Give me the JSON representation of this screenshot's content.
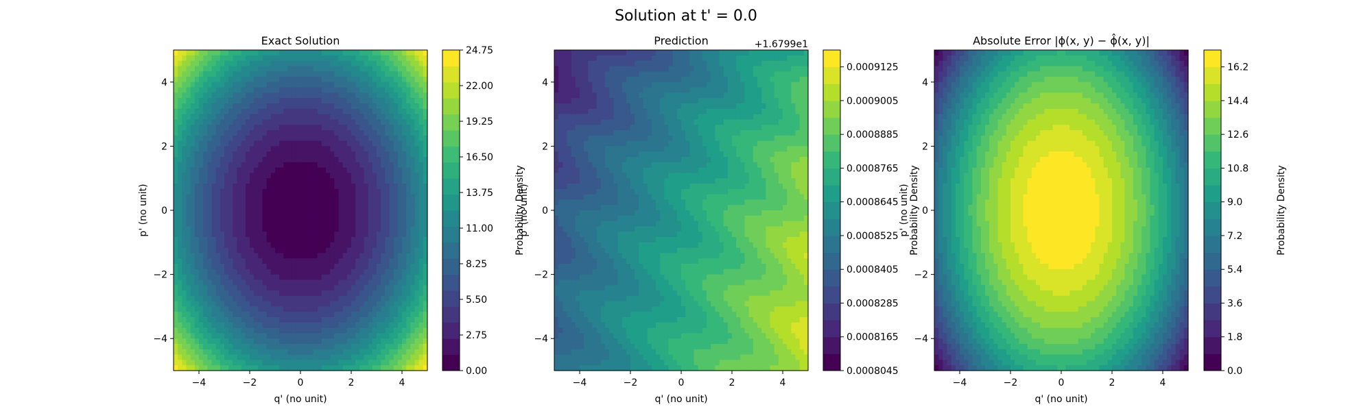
{
  "figure": {
    "suptitle": "Solution at t' = 0.0"
  },
  "chart_data": [
    {
      "type": "heatmap",
      "title": "Exact Solution",
      "xlabel": "q' (no unit)",
      "ylabel": "p' (no unit)",
      "xlim": [
        -5,
        5
      ],
      "ylim": [
        -5,
        5
      ],
      "x_ticks": [
        "−4",
        "−2",
        "0",
        "2",
        "4"
      ],
      "y_ticks": [
        "−4",
        "−2",
        "0",
        "2",
        "4"
      ],
      "field": "0.5*q^2 + 0.5*p^2 (approx.)",
      "colorbar": {
        "label": "Probability Density",
        "range": [
          0,
          24.75
        ],
        "levels": 20,
        "ticks": [
          "0.00",
          "2.75",
          "5.50",
          "8.25",
          "11.00",
          "13.75",
          "16.50",
          "19.25",
          "22.00",
          "24.75"
        ]
      }
    },
    {
      "type": "heatmap",
      "title": "Prediction",
      "xlabel": "q' (no unit)",
      "ylabel": "p' (no unit)",
      "xlim": [
        -5,
        5
      ],
      "ylim": [
        -5,
        5
      ],
      "x_ticks": [
        "−4",
        "−2",
        "0",
        "2",
        "4"
      ],
      "y_ticks": [
        "−4",
        "−2",
        "0",
        "2",
        "4"
      ],
      "offset_text": "+1.6799e1",
      "colorbar": {
        "label": "Probability Density",
        "range": [
          0.0008045,
          0.0009185
        ],
        "levels": 19,
        "ticks": [
          "0.0008045",
          "0.0008165",
          "0.0008285",
          "0.0008405",
          "0.0008525",
          "0.0008645",
          "0.0008765",
          "0.0008885",
          "0.0009005",
          "0.0009125"
        ]
      }
    },
    {
      "type": "heatmap",
      "title": "Absolute Error |ϕ(x, y) − ϕ̂(x, y)|",
      "xlabel": "q' (no unit)",
      "ylabel": "p' (no unit)",
      "xlim": [
        -5,
        5
      ],
      "ylim": [
        -5,
        5
      ],
      "x_ticks": [
        "−4",
        "−2",
        "0",
        "2",
        "4"
      ],
      "y_ticks": [
        "−4",
        "−2",
        "0",
        "2",
        "4"
      ],
      "colorbar": {
        "label": "Probability Density",
        "range": [
          0,
          17.1
        ],
        "levels": 19,
        "ticks": [
          "0.0",
          "1.8",
          "3.6",
          "5.4",
          "7.2",
          "9.0",
          "10.8",
          "12.6",
          "14.4",
          "16.2"
        ]
      }
    }
  ]
}
